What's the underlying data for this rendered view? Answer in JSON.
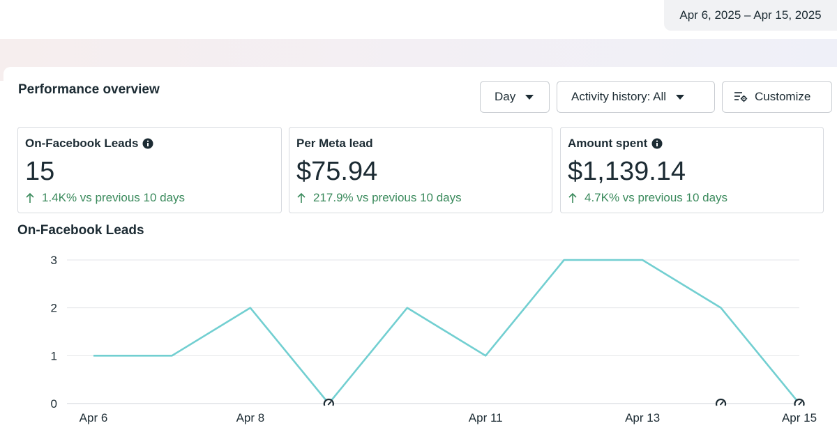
{
  "header": {
    "date_range": "Apr 6, 2025 – Apr 15, 2025"
  },
  "performance": {
    "title": "Performance overview",
    "controls": {
      "day_label": "Day",
      "activity_label": "Activity history: All",
      "customize_label": "Customize",
      "customize_icon": "customize-settings-icon",
      "caret_icon": "caret-down-icon"
    },
    "cards": [
      {
        "label": "On-Facebook Leads",
        "has_info": true,
        "value": "15",
        "delta": "1.4K% vs previous 10 days"
      },
      {
        "label": "Per Meta lead",
        "has_info": false,
        "value": "$75.94",
        "delta": "217.9% vs previous 10 days"
      },
      {
        "label": "Amount spent",
        "has_info": true,
        "value": "$1,139.14",
        "delta": "4.7K% vs previous 10 days"
      }
    ],
    "delta_color": "#3a8a5c"
  },
  "chart_data": {
    "type": "line",
    "title": "On-Facebook Leads",
    "x": [
      "Apr 6",
      "Apr 7",
      "Apr 8",
      "Apr 9",
      "Apr 10",
      "Apr 11",
      "Apr 12",
      "Apr 13",
      "Apr 14",
      "Apr 15"
    ],
    "xtick_labels": [
      "Apr 6",
      "",
      "Apr 8",
      "",
      "",
      "Apr 11",
      "",
      "Apr 13",
      "",
      "Apr 15"
    ],
    "series": [
      {
        "values": [
          1,
          1,
          2,
          0,
          2,
          1,
          3,
          3,
          2,
          0
        ],
        "color": "#72cfd1"
      }
    ],
    "yticks": [
      0,
      1,
      2,
      3
    ],
    "ylim": [
      0,
      3
    ],
    "grid": true,
    "markers": [
      {
        "x": "Apr 9",
        "icon": "gauge-icon"
      },
      {
        "x": "Apr 14",
        "icon": "gauge-icon"
      },
      {
        "x": "Apr 15",
        "icon": "gauge-icon"
      }
    ]
  }
}
